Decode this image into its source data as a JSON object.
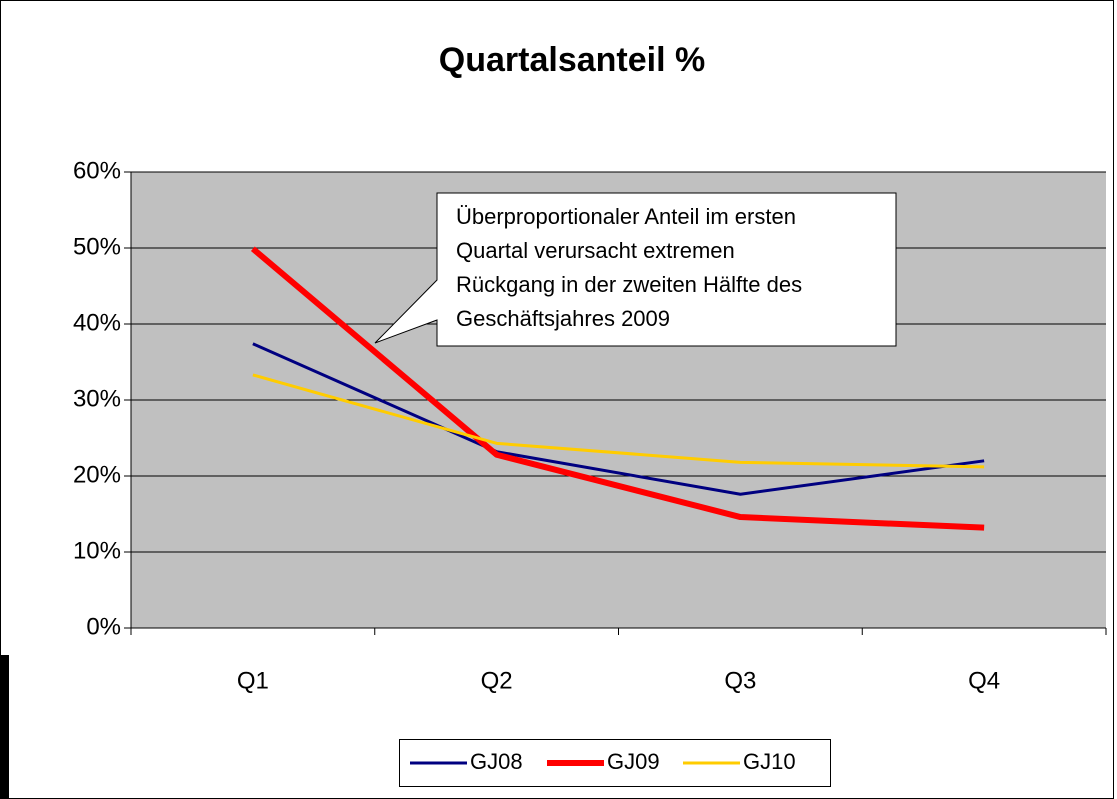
{
  "chart_data": {
    "type": "line",
    "title": "Quartalsanteil %",
    "categories": [
      "Q1",
      "Q2",
      "Q3",
      "Q4"
    ],
    "series": [
      {
        "name": "GJ08",
        "color": "#000080",
        "values": [
          37.4,
          23.2,
          17.6,
          22.0
        ]
      },
      {
        "name": "GJ09",
        "color": "#ff0000",
        "values": [
          49.9,
          22.8,
          14.6,
          13.2
        ]
      },
      {
        "name": "GJ10",
        "color": "#ffcc00",
        "values": [
          33.3,
          24.3,
          21.8,
          21.2
        ]
      }
    ],
    "ylim": [
      0,
      60
    ],
    "yticks": [
      {
        "value": 0,
        "label": "0%"
      },
      {
        "value": 10,
        "label": "10%"
      },
      {
        "value": 20,
        "label": "20%"
      },
      {
        "value": 30,
        "label": "30%"
      },
      {
        "value": 40,
        "label": "40%"
      },
      {
        "value": 50,
        "label": "50%"
      },
      {
        "value": 60,
        "label": "60%"
      }
    ],
    "grid": true,
    "legend": "bottom",
    "annotation": [
      "Überproportionaler Anteil im ersten",
      "Quartal verursacht extremen",
      "Rückgang in der zweiten Hälfte des",
      "Geschäftsjahres 2009"
    ]
  }
}
